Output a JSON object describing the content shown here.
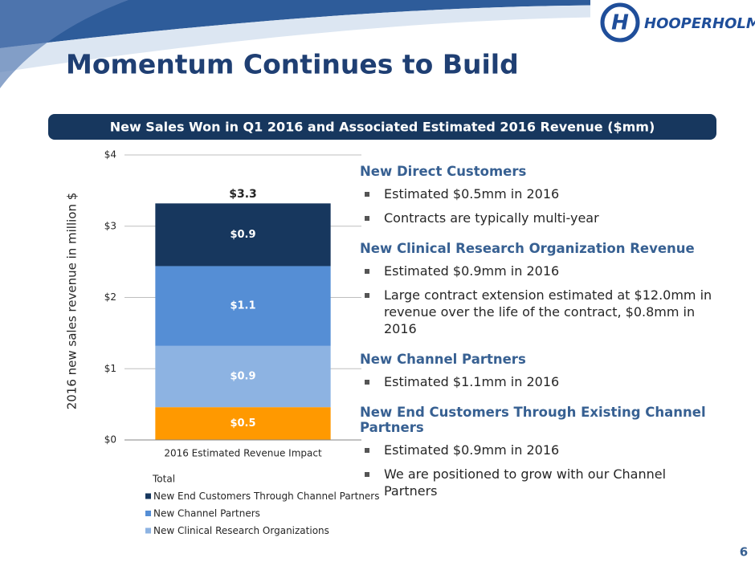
{
  "title": "Momentum Continues to Build",
  "banner": "New Sales Won in Q1 2016 and Associated Estimated 2016 Revenue ($mm)",
  "logo": "HOOPERHOLMES",
  "page_number": "6",
  "sections": [
    {
      "heading": "New Direct Customers",
      "bullets": [
        "Estimated $0.5mm in 2016",
        "Contracts are typically multi-year"
      ]
    },
    {
      "heading": "New Clinical Research Organization Revenue",
      "bullets": [
        "Estimated $0.9mm in 2016",
        "Large contract extension estimated at $12.0mm in revenue over the life of the contract, $0.8mm in 2016"
      ]
    },
    {
      "heading": "New Channel Partners",
      "bullets": [
        "Estimated $1.1mm in 2016"
      ]
    },
    {
      "heading": "New End Customers Through Existing Channel Partners",
      "bullets": [
        "Estimated $0.9mm in 2016",
        "We are positioned to grow with our Channel Partners"
      ]
    }
  ],
  "chart_data": {
    "type": "bar",
    "stacked": true,
    "grid": true,
    "y_label": "2016 new sales revenue in million $",
    "categories": [
      "2016 Estimated Revenue Impact"
    ],
    "ylim": [
      0,
      4
    ],
    "yticks": [
      {
        "value": 0,
        "label": "$0"
      },
      {
        "value": 1,
        "label": "$1"
      },
      {
        "value": 2,
        "label": "$2"
      },
      {
        "value": 3,
        "label": "$3"
      },
      {
        "value": 4,
        "label": "$4"
      }
    ],
    "series": [
      {
        "name": null,
        "color": "#ff9900",
        "values": [
          0.46
        ],
        "value_labels": [
          "$0.5"
        ]
      },
      {
        "name": "New Clinical Research Organizations",
        "color": "#8db3e2",
        "values": [
          0.86
        ],
        "value_labels": [
          "$0.9"
        ]
      },
      {
        "name": "New Channel Partners",
        "color": "#558ed5",
        "values": [
          1.12
        ],
        "value_labels": [
          "$1.1"
        ]
      },
      {
        "name": "New End Customers Through Channel Partners",
        "color": "#17375e",
        "values": [
          0.88
        ],
        "value_labels": [
          "$0.9"
        ]
      }
    ],
    "total": {
      "name": "Total",
      "values": [
        3.3
      ],
      "value_labels": [
        "$3.3"
      ]
    }
  }
}
